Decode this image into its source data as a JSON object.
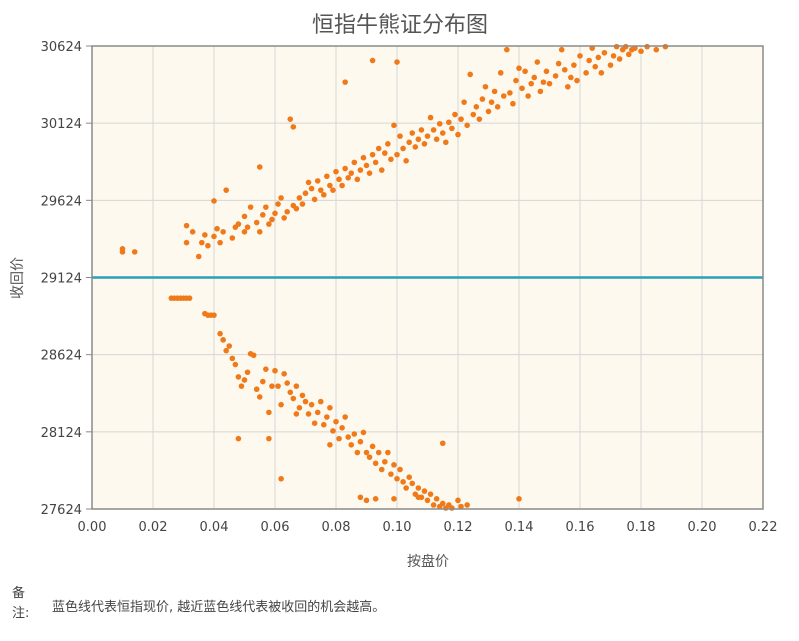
{
  "chart_data": {
    "type": "scatter",
    "title": "恒指牛熊证分布图",
    "xlabel": "按盘价",
    "ylabel": "收回价",
    "xlim": [
      0,
      0.22
    ],
    "ylim": [
      27624,
      30624
    ],
    "x_ticks": [
      "0.00",
      "0.02",
      "0.04",
      "0.06",
      "0.08",
      "0.10",
      "0.12",
      "0.14",
      "0.16",
      "0.18",
      "0.20",
      "0.22"
    ],
    "y_ticks": [
      "27624",
      "28124",
      "28624",
      "29124",
      "29624",
      "30124",
      "30624"
    ],
    "grid": true,
    "reference_line": {
      "y": 29124,
      "color": "#2a9fb5"
    },
    "point_color": "#f07a1a",
    "series": [
      {
        "points": [
          [
            0.01,
            29310
          ],
          [
            0.01,
            29290
          ],
          [
            0.014,
            29290
          ],
          [
            0.031,
            29460
          ],
          [
            0.031,
            29350
          ],
          [
            0.033,
            29420
          ],
          [
            0.035,
            29260
          ],
          [
            0.036,
            29350
          ],
          [
            0.037,
            29400
          ],
          [
            0.038,
            29330
          ],
          [
            0.04,
            29390
          ],
          [
            0.04,
            29620
          ],
          [
            0.041,
            29440
          ],
          [
            0.042,
            29350
          ],
          [
            0.043,
            29420
          ],
          [
            0.044,
            29690
          ],
          [
            0.046,
            29380
          ],
          [
            0.047,
            29450
          ],
          [
            0.048,
            29470
          ],
          [
            0.05,
            29420
          ],
          [
            0.05,
            29520
          ],
          [
            0.051,
            29450
          ],
          [
            0.052,
            29580
          ],
          [
            0.054,
            29480
          ],
          [
            0.055,
            29420
          ],
          [
            0.055,
            29840
          ],
          [
            0.056,
            29530
          ],
          [
            0.057,
            29580
          ],
          [
            0.058,
            29470
          ],
          [
            0.059,
            29500
          ],
          [
            0.06,
            29540
          ],
          [
            0.061,
            29600
          ],
          [
            0.062,
            29640
          ],
          [
            0.063,
            29510
          ],
          [
            0.064,
            29550
          ],
          [
            0.065,
            30150
          ],
          [
            0.066,
            30100
          ],
          [
            0.066,
            29590
          ],
          [
            0.067,
            29570
          ],
          [
            0.068,
            29640
          ],
          [
            0.069,
            29600
          ],
          [
            0.07,
            29670
          ],
          [
            0.071,
            29740
          ],
          [
            0.072,
            29700
          ],
          [
            0.073,
            29630
          ],
          [
            0.074,
            29750
          ],
          [
            0.075,
            29690
          ],
          [
            0.076,
            29660
          ],
          [
            0.077,
            29780
          ],
          [
            0.078,
            29720
          ],
          [
            0.079,
            29690
          ],
          [
            0.08,
            29810
          ],
          [
            0.081,
            29760
          ],
          [
            0.082,
            29720
          ],
          [
            0.083,
            29830
          ],
          [
            0.083,
            30390
          ],
          [
            0.084,
            29770
          ],
          [
            0.085,
            29800
          ],
          [
            0.086,
            29870
          ],
          [
            0.087,
            29760
          ],
          [
            0.088,
            29820
          ],
          [
            0.089,
            29900
          ],
          [
            0.09,
            29850
          ],
          [
            0.091,
            29800
          ],
          [
            0.092,
            29920
          ],
          [
            0.092,
            30530
          ],
          [
            0.093,
            29870
          ],
          [
            0.094,
            29960
          ],
          [
            0.095,
            29820
          ],
          [
            0.096,
            29930
          ],
          [
            0.097,
            29990
          ],
          [
            0.098,
            29890
          ],
          [
            0.099,
            30110
          ],
          [
            0.1,
            30520
          ],
          [
            0.1,
            29920
          ],
          [
            0.101,
            30040
          ],
          [
            0.102,
            29960
          ],
          [
            0.103,
            29880
          ],
          [
            0.104,
            30000
          ],
          [
            0.105,
            30060
          ],
          [
            0.106,
            29970
          ],
          [
            0.107,
            30020
          ],
          [
            0.108,
            30080
          ],
          [
            0.109,
            29990
          ],
          [
            0.11,
            30040
          ],
          [
            0.111,
            30160
          ],
          [
            0.112,
            30080
          ],
          [
            0.113,
            30020
          ],
          [
            0.114,
            30120
          ],
          [
            0.115,
            30060
          ],
          [
            0.116,
            30000
          ],
          [
            0.117,
            30130
          ],
          [
            0.118,
            30090
          ],
          [
            0.119,
            30180
          ],
          [
            0.12,
            30050
          ],
          [
            0.121,
            30150
          ],
          [
            0.122,
            30260
          ],
          [
            0.123,
            30110
          ],
          [
            0.124,
            30440
          ],
          [
            0.125,
            30180
          ],
          [
            0.126,
            30230
          ],
          [
            0.127,
            30150
          ],
          [
            0.128,
            30280
          ],
          [
            0.129,
            30360
          ],
          [
            0.13,
            30200
          ],
          [
            0.131,
            30260
          ],
          [
            0.132,
            30330
          ],
          [
            0.133,
            30230
          ],
          [
            0.134,
            30450
          ],
          [
            0.135,
            30300
          ],
          [
            0.136,
            30600
          ],
          [
            0.137,
            30320
          ],
          [
            0.138,
            30250
          ],
          [
            0.139,
            30400
          ],
          [
            0.14,
            30480
          ],
          [
            0.141,
            30350
          ],
          [
            0.142,
            30460
          ],
          [
            0.143,
            30300
          ],
          [
            0.144,
            30380
          ],
          [
            0.145,
            30420
          ],
          [
            0.146,
            30520
          ],
          [
            0.147,
            30330
          ],
          [
            0.148,
            30390
          ],
          [
            0.149,
            30460
          ],
          [
            0.15,
            30380
          ],
          [
            0.152,
            30430
          ],
          [
            0.153,
            30510
          ],
          [
            0.154,
            30600
          ],
          [
            0.155,
            30470
          ],
          [
            0.156,
            30360
          ],
          [
            0.157,
            30420
          ],
          [
            0.158,
            30500
          ],
          [
            0.159,
            30400
          ],
          [
            0.16,
            30560
          ],
          [
            0.162,
            30450
          ],
          [
            0.163,
            30530
          ],
          [
            0.164,
            30610
          ],
          [
            0.165,
            30490
          ],
          [
            0.166,
            30550
          ],
          [
            0.167,
            30450
          ],
          [
            0.168,
            30580
          ],
          [
            0.17,
            30500
          ],
          [
            0.171,
            30560
          ],
          [
            0.172,
            30620
          ],
          [
            0.173,
            30540
          ],
          [
            0.174,
            30600
          ],
          [
            0.175,
            30620
          ],
          [
            0.176,
            30570
          ],
          [
            0.177,
            30600
          ],
          [
            0.178,
            30610
          ],
          [
            0.18,
            30590
          ],
          [
            0.182,
            30620
          ],
          [
            0.185,
            30600
          ],
          [
            0.188,
            30620
          ],
          [
            0.026,
            28990
          ],
          [
            0.027,
            28990
          ],
          [
            0.028,
            28990
          ],
          [
            0.029,
            28990
          ],
          [
            0.03,
            28990
          ],
          [
            0.031,
            28990
          ],
          [
            0.032,
            28990
          ],
          [
            0.037,
            28890
          ],
          [
            0.038,
            28880
          ],
          [
            0.039,
            28880
          ],
          [
            0.04,
            28880
          ],
          [
            0.042,
            28760
          ],
          [
            0.043,
            28720
          ],
          [
            0.044,
            28650
          ],
          [
            0.045,
            28680
          ],
          [
            0.046,
            28600
          ],
          [
            0.047,
            28560
          ],
          [
            0.048,
            28480
          ],
          [
            0.049,
            28420
          ],
          [
            0.05,
            28460
          ],
          [
            0.051,
            28510
          ],
          [
            0.052,
            28630
          ],
          [
            0.053,
            28620
          ],
          [
            0.054,
            28400
          ],
          [
            0.055,
            28350
          ],
          [
            0.056,
            28450
          ],
          [
            0.057,
            28530
          ],
          [
            0.058,
            28250
          ],
          [
            0.059,
            28420
          ],
          [
            0.06,
            28520
          ],
          [
            0.061,
            28420
          ],
          [
            0.062,
            28300
          ],
          [
            0.063,
            28500
          ],
          [
            0.064,
            28440
          ],
          [
            0.065,
            28380
          ],
          [
            0.066,
            28340
          ],
          [
            0.067,
            28420
          ],
          [
            0.068,
            28280
          ],
          [
            0.069,
            28360
          ],
          [
            0.07,
            28320
          ],
          [
            0.071,
            28240
          ],
          [
            0.072,
            28300
          ],
          [
            0.073,
            28180
          ],
          [
            0.074,
            28250
          ],
          [
            0.075,
            28320
          ],
          [
            0.076,
            28170
          ],
          [
            0.077,
            28220
          ],
          [
            0.078,
            28280
          ],
          [
            0.079,
            28130
          ],
          [
            0.08,
            28190
          ],
          [
            0.081,
            28080
          ],
          [
            0.082,
            28150
          ],
          [
            0.083,
            28220
          ],
          [
            0.084,
            28090
          ],
          [
            0.085,
            28040
          ],
          [
            0.086,
            28110
          ],
          [
            0.087,
            27990
          ],
          [
            0.088,
            28060
          ],
          [
            0.089,
            28120
          ],
          [
            0.09,
            27990
          ],
          [
            0.091,
            27960
          ],
          [
            0.092,
            28030
          ],
          [
            0.093,
            27920
          ],
          [
            0.094,
            27990
          ],
          [
            0.095,
            27880
          ],
          [
            0.096,
            27930
          ],
          [
            0.097,
            27990
          ],
          [
            0.098,
            27850
          ],
          [
            0.099,
            27910
          ],
          [
            0.1,
            27820
          ],
          [
            0.101,
            27880
          ],
          [
            0.102,
            27800
          ],
          [
            0.103,
            27760
          ],
          [
            0.104,
            27830
          ],
          [
            0.105,
            27790
          ],
          [
            0.106,
            27720
          ],
          [
            0.107,
            27760
          ],
          [
            0.108,
            27700
          ],
          [
            0.109,
            27740
          ],
          [
            0.11,
            27680
          ],
          [
            0.111,
            27720
          ],
          [
            0.112,
            27650
          ],
          [
            0.113,
            27690
          ],
          [
            0.114,
            27640
          ],
          [
            0.115,
            27660
          ],
          [
            0.116,
            27630
          ],
          [
            0.117,
            27650
          ],
          [
            0.118,
            27630
          ],
          [
            0.12,
            27680
          ],
          [
            0.121,
            27640
          ],
          [
            0.123,
            27650
          ],
          [
            0.048,
            28080
          ],
          [
            0.062,
            27820
          ],
          [
            0.078,
            28040
          ],
          [
            0.088,
            27700
          ],
          [
            0.09,
            27680
          ],
          [
            0.093,
            27690
          ],
          [
            0.099,
            27690
          ],
          [
            0.107,
            27700
          ],
          [
            0.115,
            28050
          ],
          [
            0.14,
            27690
          ],
          [
            0.067,
            28240
          ],
          [
            0.058,
            28080
          ]
        ]
      }
    ]
  },
  "note": {
    "label": "备注:",
    "text": "蓝色线代表恒指现价, 越近蓝色线代表被收回的机会越高。"
  }
}
